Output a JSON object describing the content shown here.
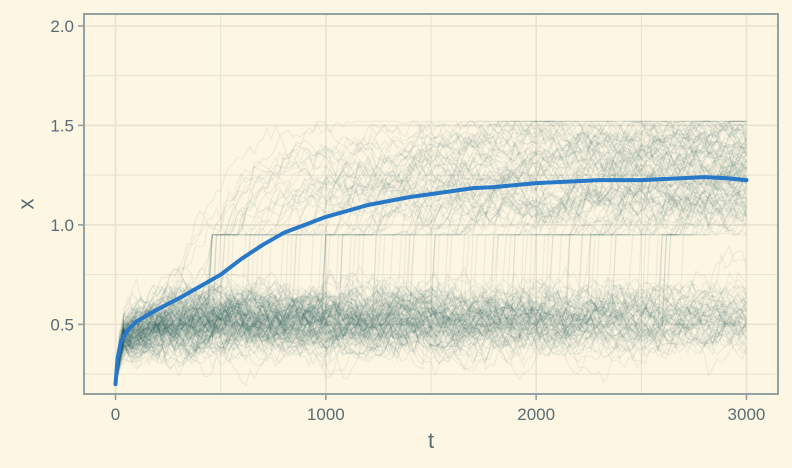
{
  "chart_data": {
    "type": "line",
    "title": "",
    "xlabel": "t",
    "ylabel": "x",
    "xlim": [
      -150,
      3150
    ],
    "ylim": [
      0.15,
      2.06
    ],
    "x_ticks": [
      0,
      1000,
      2000,
      3000
    ],
    "x_tick_labels": [
      "0",
      "1000",
      "2000",
      "3000"
    ],
    "y_ticks": [
      0.5,
      1.0,
      1.5,
      2.0
    ],
    "y_tick_labels": [
      "0.5",
      "1.0",
      "1.5",
      "2.0"
    ],
    "grid": true,
    "legend": "none",
    "colors": {
      "background": "#fdf6e3",
      "grid": "#e8e2d0",
      "axis": "#93a1a1",
      "text": "#586e75",
      "paths": "#1d5052",
      "mean_line": "#2878c8"
    },
    "ensemble": {
      "name": "",
      "description": "many translucent simulated paths",
      "x_range": [
        0,
        3000
      ],
      "start_value": 0.2,
      "lower_band": [
        0.45,
        0.6
      ],
      "upper_band": [
        1.0,
        1.5
      ]
    },
    "series": [
      {
        "name": "",
        "x": [
          0,
          10,
          25,
          50,
          75,
          100,
          150,
          200,
          300,
          400,
          500,
          600,
          700,
          800,
          900,
          1000,
          1100,
          1200,
          1300,
          1400,
          1500,
          1600,
          1700,
          1800,
          1900,
          2000,
          2100,
          2200,
          2300,
          2400,
          2500,
          2600,
          2700,
          2800,
          2900,
          3000
        ],
        "y": [
          0.2,
          0.33,
          0.41,
          0.46,
          0.49,
          0.515,
          0.545,
          0.575,
          0.63,
          0.69,
          0.75,
          0.83,
          0.9,
          0.96,
          1.0,
          1.04,
          1.07,
          1.1,
          1.12,
          1.14,
          1.155,
          1.17,
          1.185,
          1.19,
          1.2,
          1.21,
          1.215,
          1.22,
          1.225,
          1.225,
          1.225,
          1.23,
          1.235,
          1.24,
          1.235,
          1.225
        ]
      }
    ]
  }
}
